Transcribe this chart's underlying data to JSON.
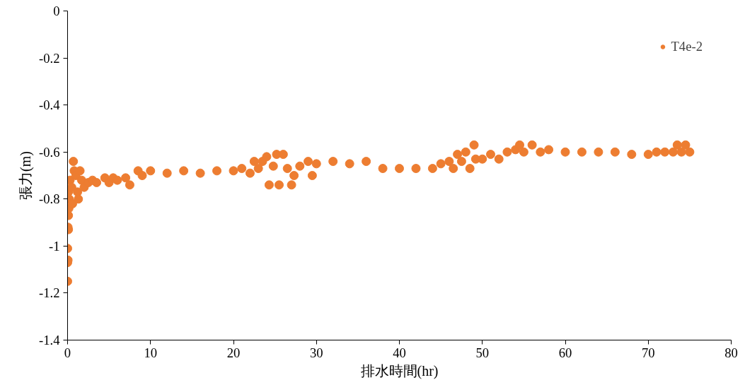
{
  "chart_data": {
    "type": "scatter",
    "xlabel": "排水時間(hr)",
    "ylabel": "張力(m)",
    "xlim": [
      0,
      80
    ],
    "ylim": [
      -1.4,
      0
    ],
    "xticks": [
      0,
      10,
      20,
      30,
      40,
      50,
      60,
      70,
      80
    ],
    "yticks": [
      0,
      -0.2,
      -0.4,
      -0.6,
      -0.8,
      -1,
      -1.2,
      -1.4
    ],
    "grid": false,
    "legend": "top right",
    "marker": "circle",
    "series": [
      {
        "name": "T4e-2",
        "color": "#ed7d31",
        "x": [
          0.0,
          0.0,
          0.05,
          0.0,
          0.1,
          0.05,
          0.1,
          0.15,
          0.2,
          0.1,
          0.3,
          0.5,
          0.7,
          0.8,
          0.6,
          1.0,
          1.2,
          1.5,
          1.3,
          1.7,
          2.0,
          2.5,
          3.0,
          3.5,
          4.5,
          5.0,
          5.5,
          6.0,
          7.0,
          7.5,
          8.5,
          9.0,
          10,
          12,
          14,
          16,
          18,
          20,
          21,
          22,
          22.5,
          23,
          23.5,
          24,
          24.3,
          24.8,
          25.2,
          25.5,
          26,
          26.5,
          27,
          27.3,
          28,
          29,
          29.5,
          30,
          32,
          34,
          36,
          38,
          40,
          42,
          44,
          45,
          46,
          46.5,
          47,
          47.5,
          48,
          48.5,
          49,
          49.2,
          50,
          51,
          52,
          53,
          54,
          54.5,
          55,
          56,
          57,
          58,
          60,
          62,
          64,
          66,
          68,
          70,
          71,
          72,
          73,
          73.5,
          74,
          74.5,
          75
        ],
        "values": [
          -1.15,
          -1.07,
          -1.06,
          -1.01,
          -0.93,
          -0.92,
          -0.87,
          -0.84,
          -0.8,
          -0.77,
          -0.72,
          -0.75,
          -0.64,
          -0.68,
          -0.82,
          -0.7,
          -0.77,
          -0.68,
          -0.8,
          -0.72,
          -0.75,
          -0.73,
          -0.72,
          -0.73,
          -0.71,
          -0.73,
          -0.71,
          -0.72,
          -0.71,
          -0.74,
          -0.68,
          -0.7,
          -0.68,
          -0.69,
          -0.68,
          -0.69,
          -0.68,
          -0.68,
          -0.67,
          -0.69,
          -0.64,
          -0.67,
          -0.64,
          -0.62,
          -0.74,
          -0.66,
          -0.61,
          -0.74,
          -0.61,
          -0.67,
          -0.74,
          -0.7,
          -0.66,
          -0.64,
          -0.7,
          -0.65,
          -0.64,
          -0.65,
          -0.64,
          -0.67,
          -0.67,
          -0.67,
          -0.67,
          -0.65,
          -0.64,
          -0.67,
          -0.61,
          -0.64,
          -0.6,
          -0.67,
          -0.57,
          -0.63,
          -0.63,
          -0.61,
          -0.63,
          -0.6,
          -0.59,
          -0.57,
          -0.6,
          -0.57,
          -0.6,
          -0.59,
          -0.6,
          -0.6,
          -0.6,
          -0.6,
          -0.61,
          -0.61,
          -0.6,
          -0.6,
          -0.6,
          -0.57,
          -0.6,
          -0.57,
          -0.6
        ]
      }
    ]
  }
}
